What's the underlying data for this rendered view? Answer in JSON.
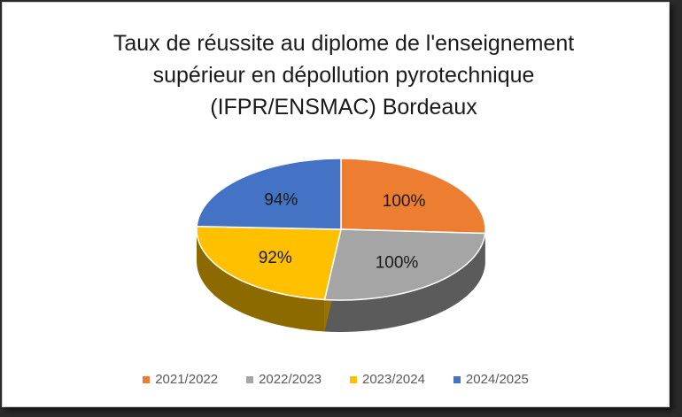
{
  "chart_data": {
    "type": "pie",
    "title_lines": [
      "Taux de réussite au diplome de l'enseignement",
      "supérieur  en dépollution pyrotechnique",
      "(IFPR/ENSMAC) Bordeaux"
    ],
    "categories": [
      "2021/2022",
      "2022/2023",
      "2023/2024",
      "2024/2025"
    ],
    "values": [
      100,
      100,
      92,
      94
    ],
    "data_labels": [
      "100%",
      "100%",
      "92%",
      "94%"
    ],
    "colors": [
      "#ED7D31",
      "#A5A5A5",
      "#FFC000",
      "#4472C4"
    ],
    "style": "3d-pie",
    "legend_position": "bottom"
  }
}
